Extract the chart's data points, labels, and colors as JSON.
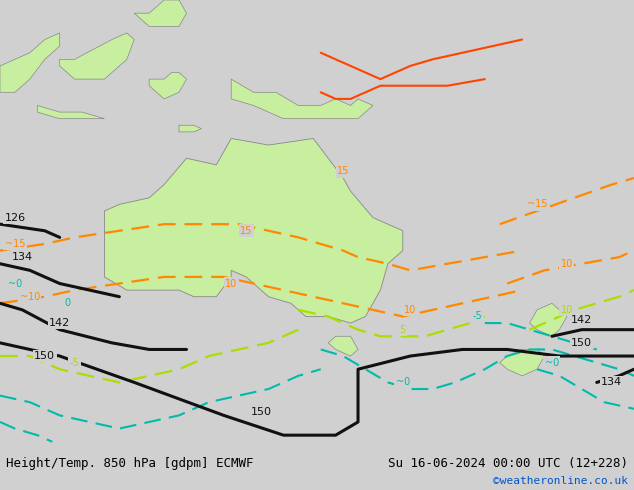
{
  "title_left": "Height/Temp. 850 hPa [gdpm] ECMWF",
  "title_right": "Su 16-06-2024 00:00 UTC (12+228)",
  "credit": "©weatheronline.co.uk",
  "background_color": "#d0d0d0",
  "land_color": "#c8eea0",
  "fig_width": 6.34,
  "fig_height": 4.9,
  "dpi": 100,
  "title_fontsize": 9.0,
  "credit_fontsize": 8.0,
  "credit_color": "#0055cc"
}
